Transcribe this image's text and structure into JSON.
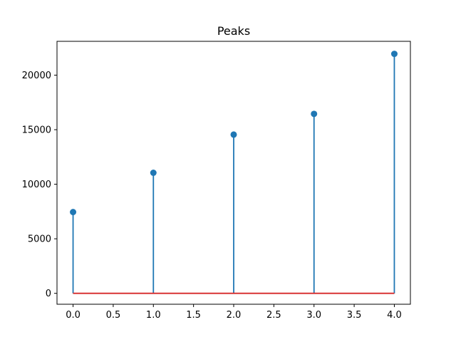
{
  "chart_data": {
    "type": "stem",
    "title": "Peaks",
    "xlabel": "",
    "ylabel": "",
    "x": [
      0,
      1,
      2,
      3,
      4
    ],
    "values": [
      7450,
      11050,
      14550,
      16450,
      21950
    ],
    "xlim": [
      -0.2,
      4.2
    ],
    "ylim": [
      -1000,
      23100
    ],
    "xticks": [
      0,
      0.5,
      1,
      1.5,
      2,
      2.5,
      3,
      3.5,
      4
    ],
    "xtick_labels": [
      "0.0",
      "0.5",
      "1.0",
      "1.5",
      "2.0",
      "2.5",
      "3.0",
      "3.5",
      "4.0"
    ],
    "yticks": [
      0,
      5000,
      10000,
      15000,
      20000
    ],
    "ytick_labels": [
      "0",
      "5000",
      "10000",
      "15000",
      "20000"
    ],
    "baseline": 0,
    "grid": false,
    "colors": {
      "stem": "#1f77b4",
      "marker": "#1f77b4",
      "baseline": "#d62728",
      "axes": "#000000"
    }
  }
}
